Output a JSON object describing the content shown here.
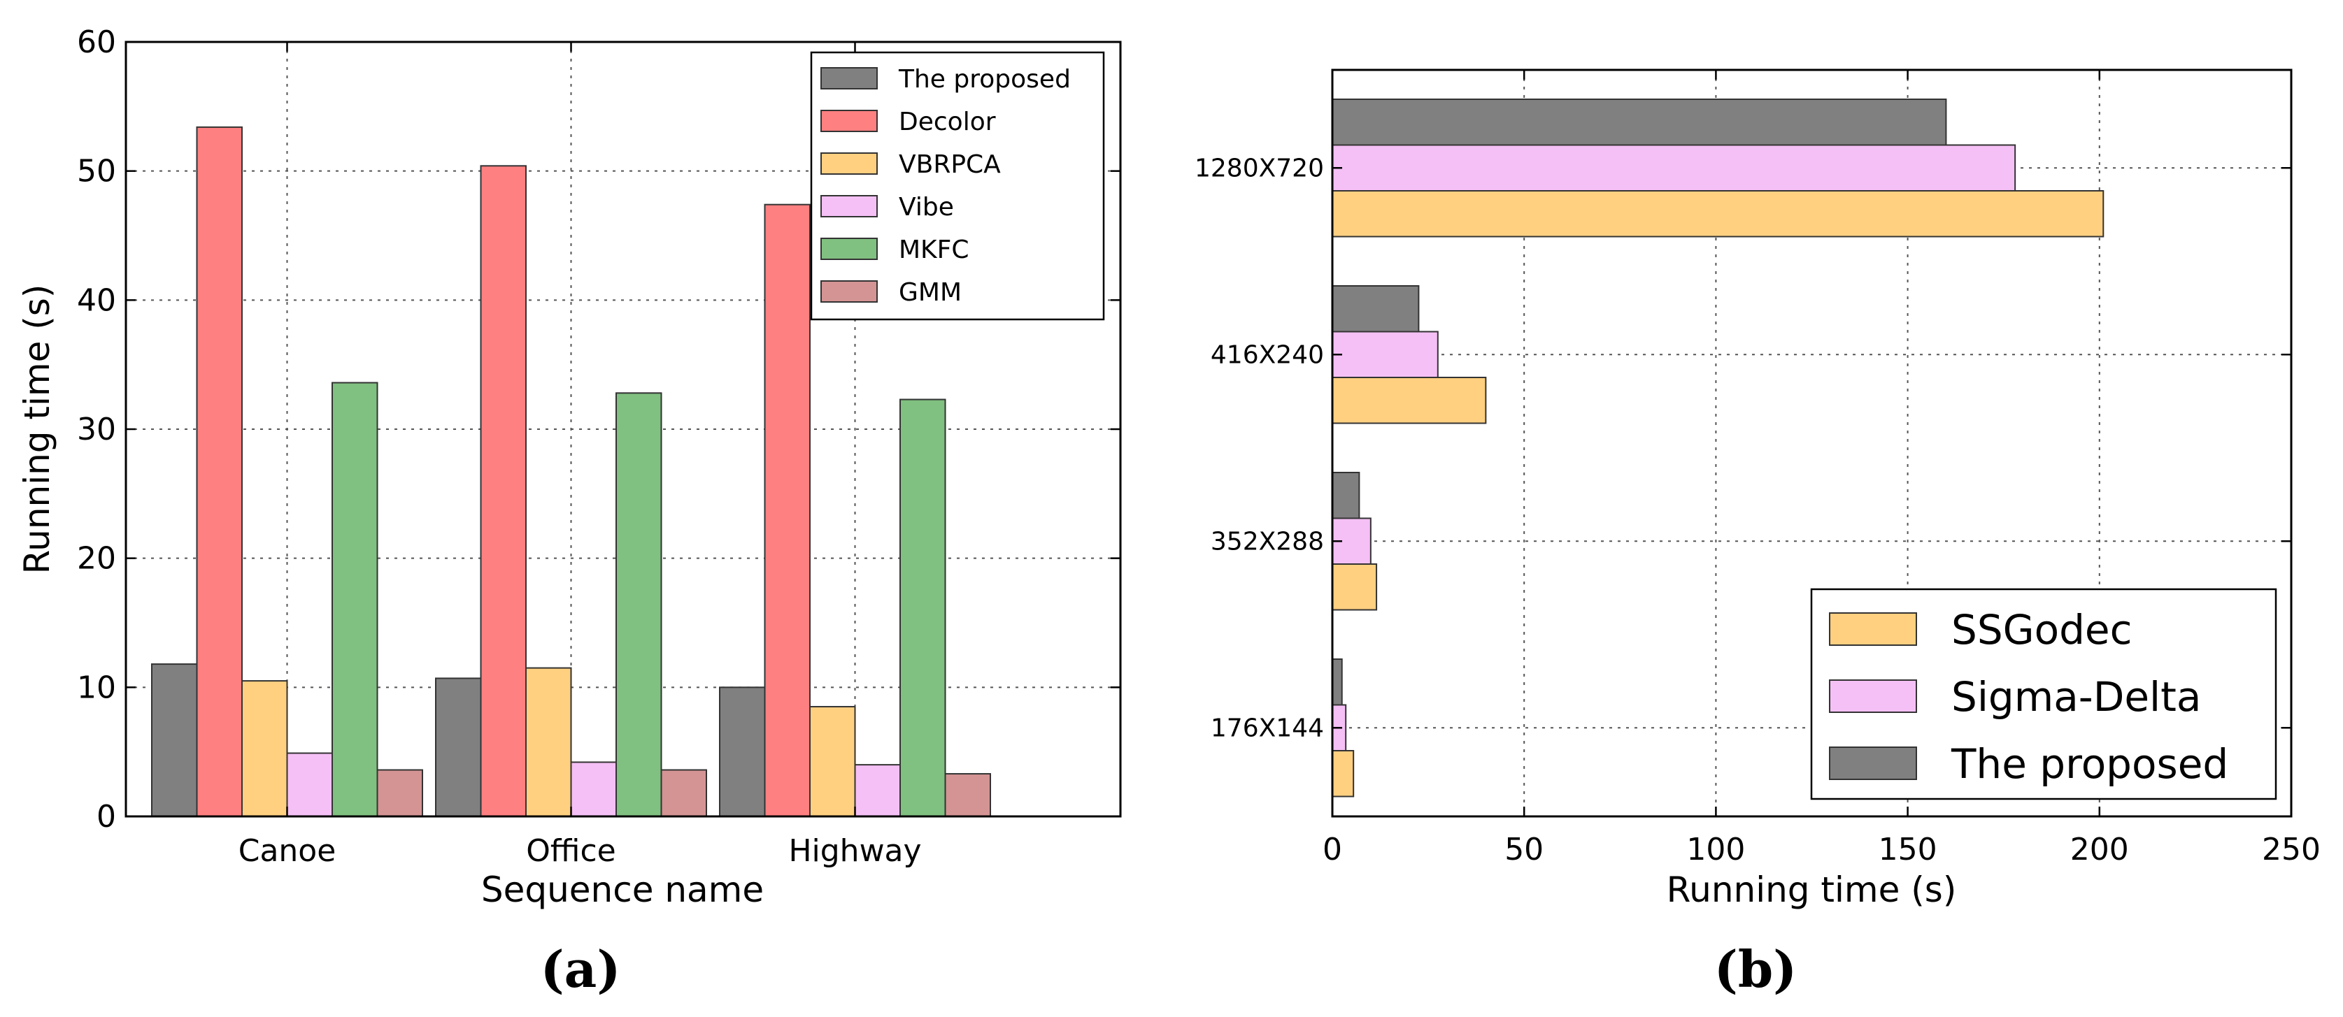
{
  "chart_data": [
    {
      "type": "bar",
      "title": "",
      "xlabel": "Sequence name",
      "ylabel": "Running time (s)",
      "categories": [
        "Canoe",
        "Office",
        "Highway"
      ],
      "ylim": [
        0,
        60
      ],
      "yticks": [
        0,
        10,
        20,
        30,
        40,
        50,
        60
      ],
      "grid": true,
      "legend_position": "top-right",
      "series": [
        {
          "name": "The proposed",
          "color": "#808080",
          "values": [
            11.8,
            10.7,
            10.0
          ]
        },
        {
          "name": "Decolor",
          "color": "#ff8080",
          "values": [
            53.4,
            50.4,
            47.4
          ]
        },
        {
          "name": "VBRPCA",
          "color": "#ffd080",
          "values": [
            10.5,
            11.5,
            8.5
          ]
        },
        {
          "name": "Vibe",
          "color": "#f5c0f5",
          "values": [
            4.9,
            4.2,
            4.0
          ]
        },
        {
          "name": "MKFC",
          "color": "#80c080",
          "values": [
            33.6,
            32.8,
            32.3
          ]
        },
        {
          "name": "GMM",
          "color": "#d49494",
          "values": [
            3.6,
            3.6,
            3.3
          ]
        }
      ],
      "panel_label": "(a)"
    },
    {
      "type": "bar",
      "orientation": "horizontal",
      "title": "",
      "xlabel": "Running time (s)",
      "ylabel": "",
      "categories": [
        "1280X720",
        "416X240",
        "352X288",
        "176X144"
      ],
      "xlim": [
        0,
        250
      ],
      "xticks": [
        0,
        50,
        100,
        150,
        200,
        250
      ],
      "grid": true,
      "legend_position": "bottom-right",
      "series": [
        {
          "name": "The proposed",
          "color": "#808080",
          "values": [
            160,
            22.5,
            7,
            2.5
          ]
        },
        {
          "name": "Sigma-Delta",
          "color": "#f5c0f5",
          "values": [
            178,
            27.5,
            10,
            3.5
          ]
        },
        {
          "name": "SSGodec",
          "color": "#ffd080",
          "values": [
            201,
            40,
            11.5,
            5.5
          ]
        }
      ],
      "legend_order": [
        "SSGodec",
        "Sigma-Delta",
        "The proposed"
      ],
      "panel_label": "(b)"
    }
  ]
}
